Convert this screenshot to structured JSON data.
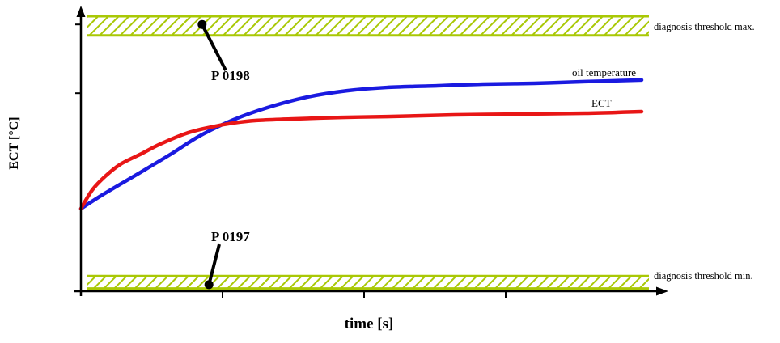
{
  "figure": {
    "description": "Engine coolant / oil temperature diagnosis thresholds diagram"
  },
  "chart_data": {
    "type": "line",
    "title": "",
    "xlabel": "time [s]",
    "ylabel": "ECT [°C]",
    "xlim": [
      0,
      100
    ],
    "ylim": [
      0,
      100
    ],
    "grid": false,
    "axis_numeric_labels": false,
    "x_ticks": [
      25,
      50,
      75
    ],
    "y_ticks": [
      72,
      97
    ],
    "series": [
      {
        "name": "oil temperature",
        "color": "#1a1ae0",
        "x": [
          0,
          4,
          10,
          16,
          21,
          27,
          33,
          40,
          47,
          54,
          63,
          71,
          80,
          89,
          99
        ],
        "y": [
          30,
          35.3,
          42.6,
          50,
          56.5,
          62.4,
          66.8,
          70.6,
          72.9,
          74.1,
          74.7,
          75.3,
          75.6,
          76.2,
          76.8
        ]
      },
      {
        "name": "ECT",
        "color": "#e81616",
        "x": [
          0,
          2,
          4.3,
          7,
          10.7,
          14,
          18.6,
          23,
          27,
          31,
          37,
          46,
          54,
          66,
          77,
          89,
          99
        ],
        "y": [
          30,
          36.8,
          41.8,
          46.2,
          50,
          53.5,
          57.4,
          59.7,
          61.2,
          62.1,
          62.6,
          63.2,
          63.5,
          64.1,
          64.4,
          64.7,
          65.3
        ]
      }
    ],
    "threshold_bands": [
      {
        "label": "diagnosis threshold max.",
        "y_from": 93,
        "y_to": 100,
        "fault_code": "P 0198"
      },
      {
        "label": "diagnosis threshold min.",
        "y_from": 1,
        "y_to": 5.5,
        "fault_code": "P 0197"
      }
    ],
    "fault_markers": [
      {
        "label": "P 0198",
        "x": 21.4,
        "y": 97
      },
      {
        "label": "P 0197",
        "x": 22.6,
        "y": 2.4
      }
    ],
    "colors": {
      "threshold_band": "#a9c806",
      "axis": "#000000",
      "marker_dot": "#000000"
    }
  }
}
